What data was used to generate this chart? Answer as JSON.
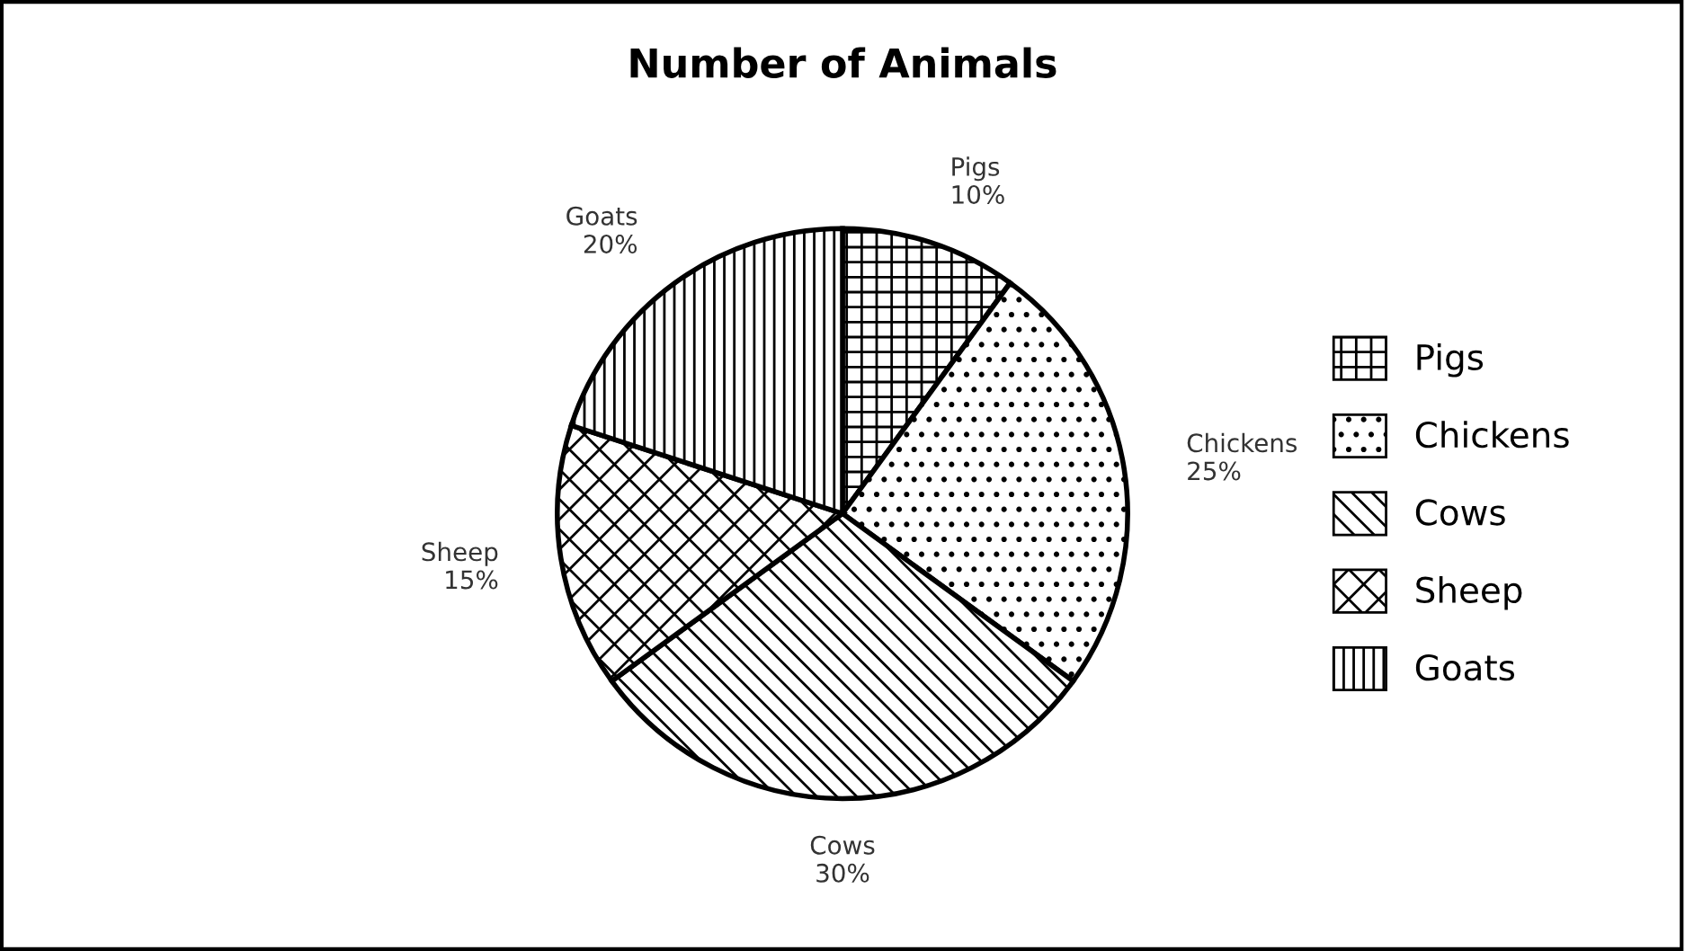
{
  "chart_data": {
    "type": "pie",
    "title": "Number of Animals",
    "categories": [
      "Pigs",
      "Chickens",
      "Cows",
      "Sheep",
      "Goats"
    ],
    "values": [
      10,
      25,
      30,
      15,
      20
    ],
    "value_labels": [
      "10%",
      "25%",
      "30%",
      "15%",
      "20%"
    ],
    "legend": "right"
  }
}
